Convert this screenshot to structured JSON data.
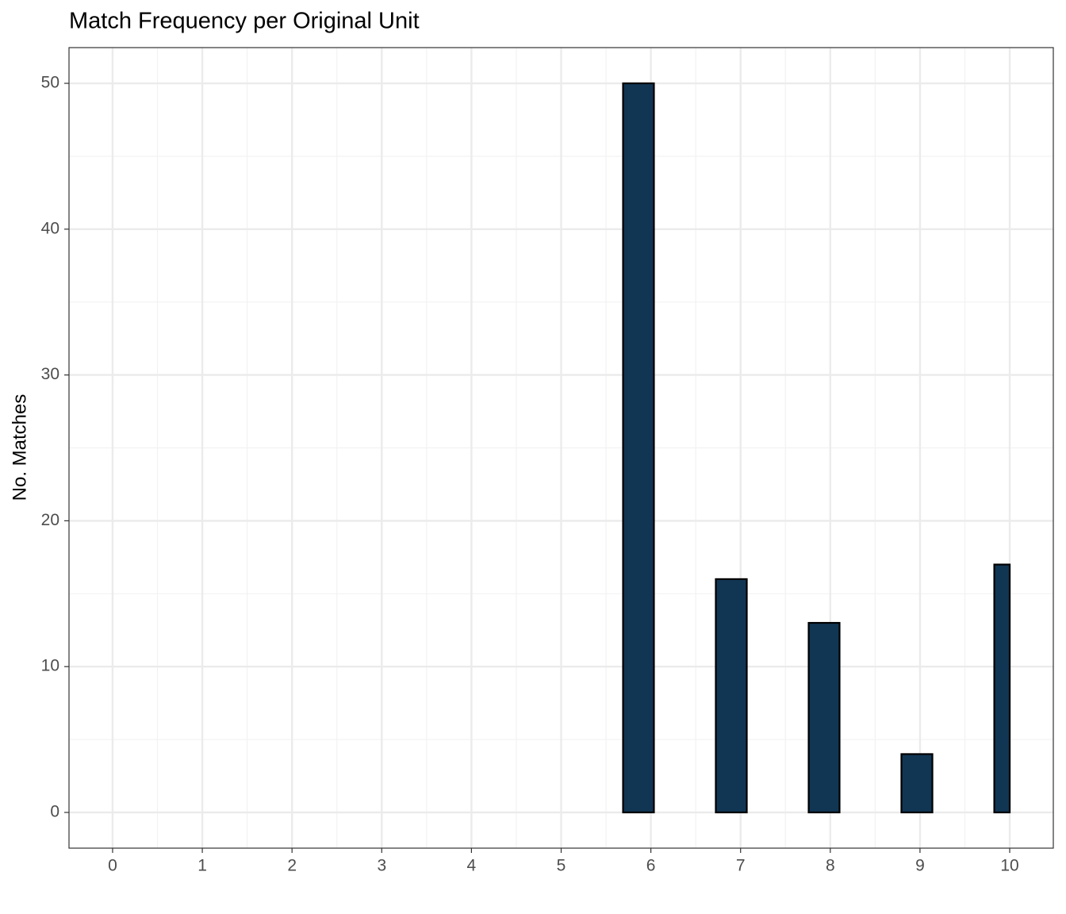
{
  "chart_data": {
    "type": "histogram",
    "title": "Match Frequency per Original Unit",
    "y_label": "No. Matches",
    "bins": [
      0,
      0.172,
      0.517,
      0.862,
      1.207,
      1.552,
      1.897,
      2.241,
      2.586,
      2.931,
      3.276,
      3.621,
      3.966,
      4.31,
      4.655,
      5.0,
      5.345,
      5.69,
      6.034,
      6.379,
      6.724,
      7.069,
      7.414,
      7.759,
      8.103,
      8.448,
      8.793,
      9.138,
      9.483,
      9.828,
      10
    ],
    "values": [
      0,
      0,
      0,
      0,
      0,
      0,
      0,
      0,
      0,
      0,
      0,
      0,
      0,
      0,
      0,
      0,
      0,
      50,
      0,
      0,
      16,
      0,
      0,
      13,
      0,
      0,
      4,
      0,
      0,
      17
    ],
    "color": "#113654",
    "xlim": [
      -0.486,
      10.486
    ],
    "xticks": [
      0,
      1,
      2,
      3,
      4,
      5,
      6,
      7,
      8,
      9,
      10
    ],
    "ylim": [
      -2.45,
      52.45
    ],
    "yticks": [
      0,
      10,
      20,
      30,
      40,
      50
    ],
    "grid": true
  }
}
